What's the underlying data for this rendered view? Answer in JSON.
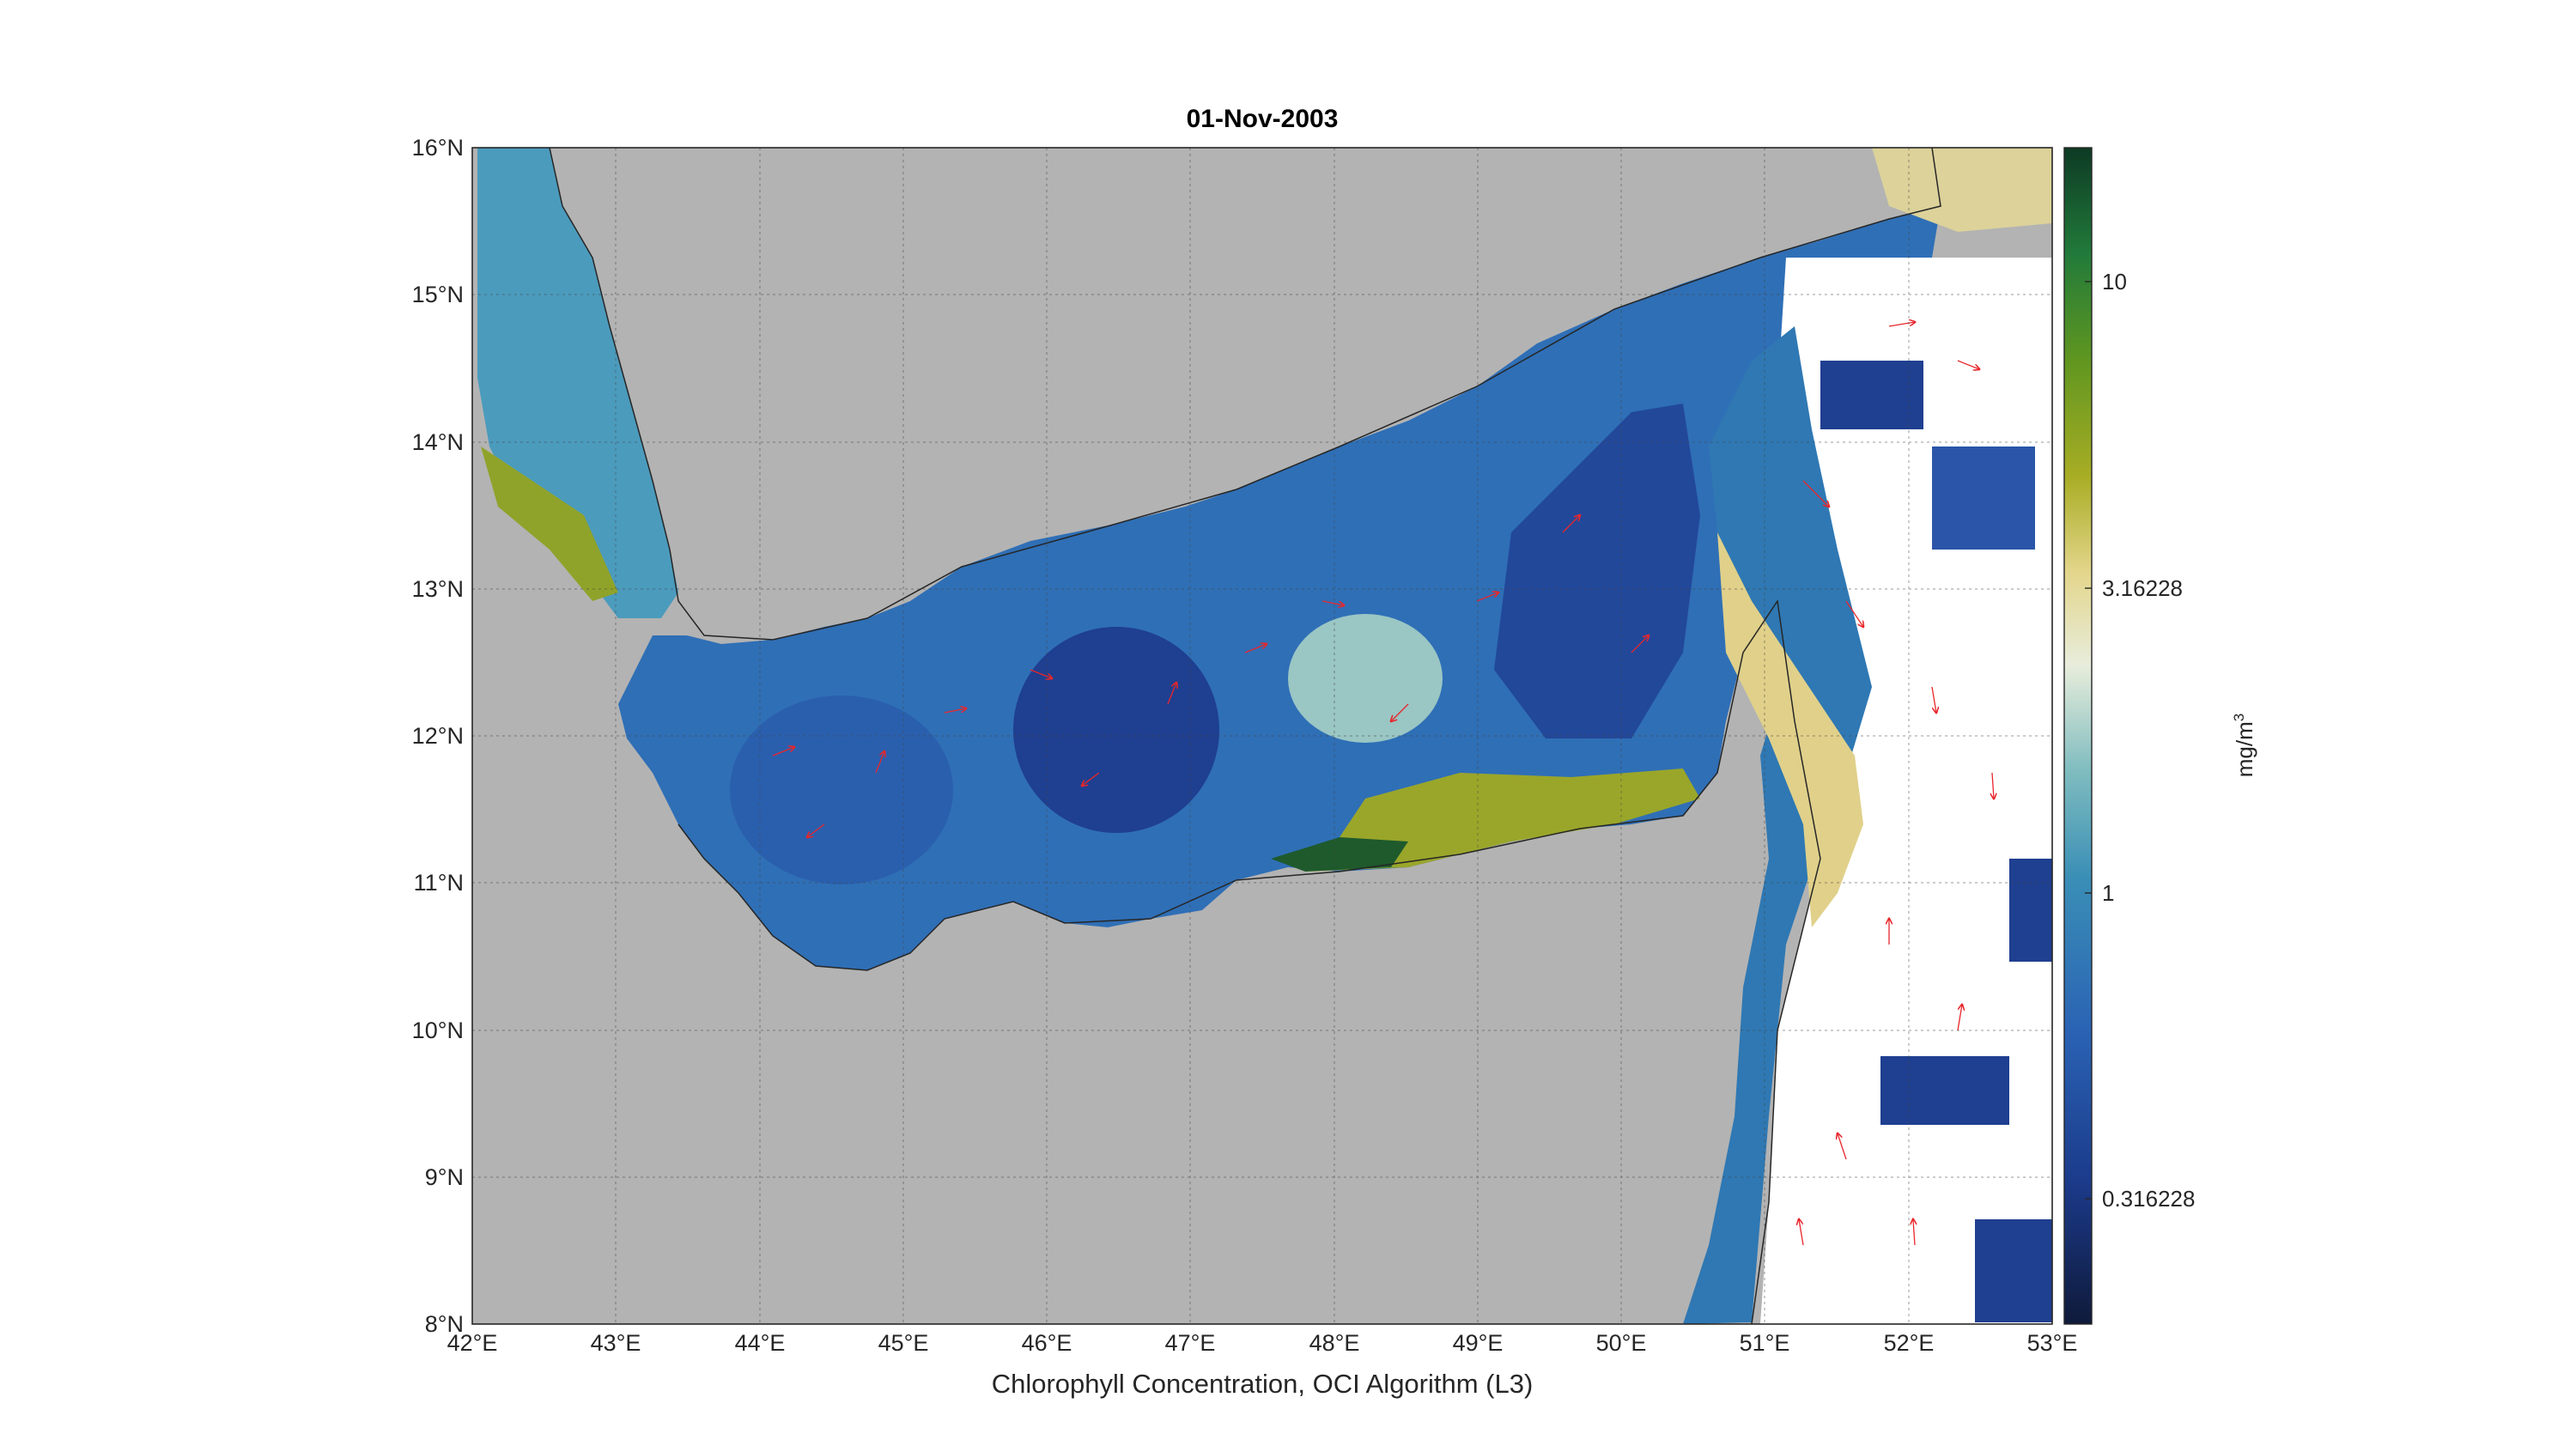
{
  "map": {
    "title": "01-Nov-2003",
    "xlabel": "Chlorophyll Concentration, OCI Algorithm (L3)",
    "lon_ticks": [
      "42°E",
      "43°E",
      "44°E",
      "45°E",
      "46°E",
      "47°E",
      "48°E",
      "49°E",
      "50°E",
      "51°E",
      "52°E",
      "53°E"
    ],
    "lat_ticks": [
      "16°N",
      "15°N",
      "14°N",
      "13°N",
      "12°N",
      "11°N",
      "10°N",
      "9°N",
      "8°N"
    ],
    "lon_range": [
      42,
      53
    ],
    "lat_range": [
      8,
      16
    ],
    "land_color": "#b3b3b3",
    "ocean_nodata_color": "#ffffff",
    "vector_color": "#e8262b",
    "grid": true
  },
  "colorbar": {
    "unit_base": "mg/m",
    "unit_sup": "3",
    "scale": "log",
    "ticks": [
      "10",
      "3.16228",
      "1",
      "0.316228"
    ],
    "tick_values": [
      10,
      3.16228,
      1,
      0.316228
    ],
    "range": [
      0.16,
      20
    ],
    "colors": [
      "#0f1a3a",
      "#1b3a8a",
      "#2a63b4",
      "#3a8fb6",
      "#7fbcbf",
      "#e8eddc",
      "#e3d58a",
      "#a8ad24",
      "#5f9620",
      "#217a3a",
      "#0d3a24"
    ]
  }
}
